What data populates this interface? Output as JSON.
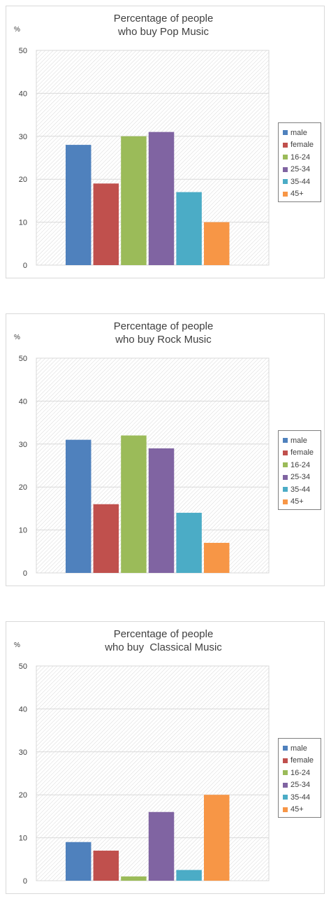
{
  "series_colors": {
    "male": "#4f81bd",
    "female": "#c0504d",
    "16-24": "#9bbb59",
    "25-34": "#8064a2",
    "35-44": "#4bacc6",
    "45+": "#f79646"
  },
  "chart_data": [
    {
      "type": "bar",
      "title_lines": [
        "Percentage of people",
        "who buy Pop Music"
      ],
      "ylabel": "%",
      "ylim": [
        0,
        50
      ],
      "yticks": [
        "0",
        "10",
        "20",
        "30",
        "40",
        "50"
      ],
      "grid": true,
      "legend_position": "right",
      "categories": [
        "male",
        "female",
        "16-24",
        "25-34",
        "35-44",
        "45+"
      ],
      "values": [
        28,
        19,
        30,
        31,
        17,
        10
      ]
    },
    {
      "type": "bar",
      "title_lines": [
        "Percentage of people",
        "who buy Rock Music"
      ],
      "ylabel": "%",
      "ylim": [
        0,
        50
      ],
      "yticks": [
        "0",
        "10",
        "20",
        "30",
        "40",
        "50"
      ],
      "grid": true,
      "legend_position": "right",
      "categories": [
        "male",
        "female",
        "16-24",
        "25-34",
        "35-44",
        "45+"
      ],
      "values": [
        31,
        16,
        32,
        29,
        14,
        7
      ]
    },
    {
      "type": "bar",
      "title_lines": [
        "Percentage of people",
        "who buy  Classical Music"
      ],
      "ylabel": "%",
      "ylim": [
        0,
        50
      ],
      "yticks": [
        "0",
        "10",
        "20",
        "30",
        "40",
        "50"
      ],
      "grid": true,
      "legend_position": "right",
      "categories": [
        "male",
        "female",
        "16-24",
        "25-34",
        "35-44",
        "45+"
      ],
      "values": [
        9,
        7,
        1,
        16,
        2.5,
        20
      ]
    }
  ]
}
